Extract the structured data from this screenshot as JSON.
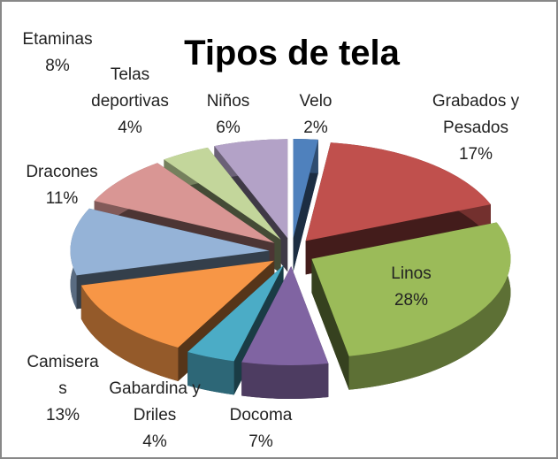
{
  "chart_data": {
    "type": "pie",
    "title": "Tipos de tela",
    "categories": [
      "Velo",
      "Grabados y Pesados",
      "Linos",
      "Docoma",
      "Gabardina y Driles",
      "Camiseras",
      "Dracones",
      "Etaminas",
      "Telas deportivas",
      "Niños"
    ],
    "values": [
      2,
      17,
      28,
      7,
      4,
      13,
      11,
      8,
      4,
      6
    ],
    "value_labels": [
      "2%",
      "17%",
      "28%",
      "7%",
      "4%",
      "13%",
      "11%",
      "8%",
      "4%",
      "6%"
    ],
    "colors": [
      "#4f81bd",
      "#c0504d",
      "#9bbb59",
      "#8064a2",
      "#4bacc6",
      "#f79646",
      "#95b3d7",
      "#d99694",
      "#c3d69b",
      "#b3a2c7"
    ]
  }
}
